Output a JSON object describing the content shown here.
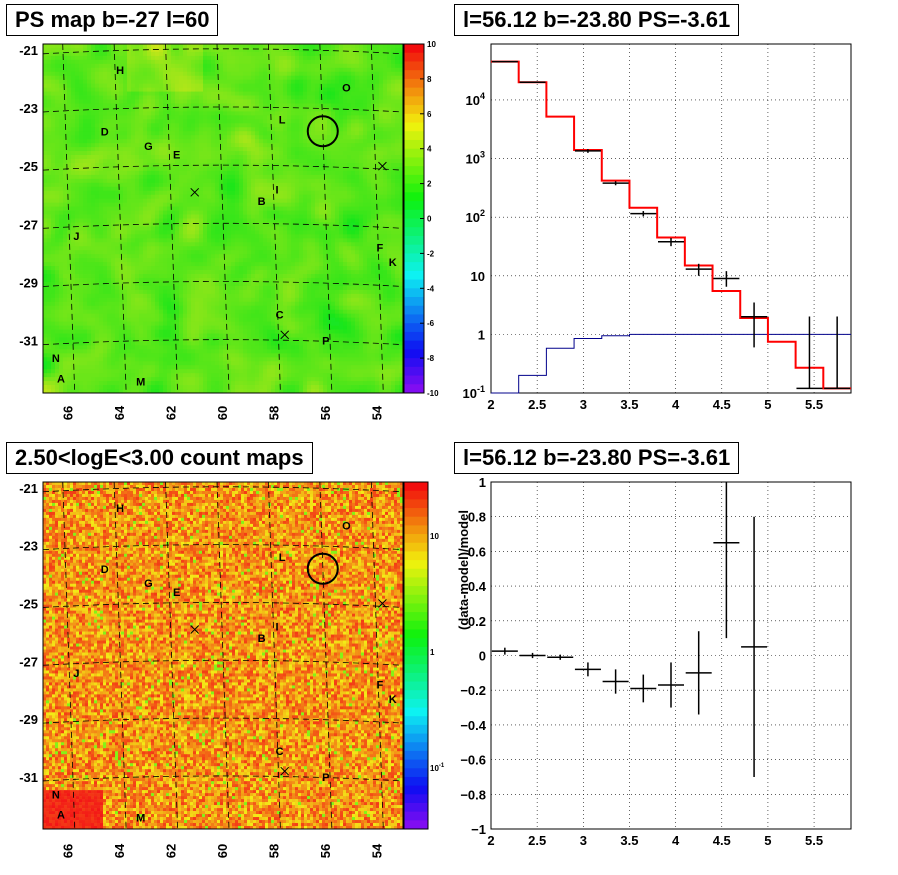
{
  "panels": {
    "tl_title": "PS map b=-27 l=60",
    "tr_title": "l=56.12 b=-23.80 PS=-3.61",
    "bl_title": "2.50<logE<3.00 count maps",
    "br_title": "l=56.12 b=-23.80 PS=-3.61"
  },
  "colors": {
    "red_model": "#ff0000",
    "blue_model": "#00008b",
    "data": "#000000"
  },
  "chart_data": [
    {
      "type": "heatmap",
      "title": "PS map b=-27 l=60",
      "x_ticks": [
        "66",
        "64",
        "62",
        "60",
        "58",
        "56",
        "54"
      ],
      "y_ticks": [
        "-21",
        "-23",
        "-25",
        "-27",
        "-29",
        "-31"
      ],
      "xlim": [
        67,
        53
      ],
      "ylim": [
        -32.8,
        -20.8
      ],
      "colorbar": {
        "min": -10,
        "max": 10,
        "ticks": [
          "10",
          "8",
          "6",
          "4",
          "2",
          "0",
          "-2",
          "-4",
          "-6",
          "-8",
          "-10"
        ]
      },
      "sources": [
        {
          "label": "H",
          "l": 64.0,
          "b": -21.7
        },
        {
          "label": "O",
          "l": 55.2,
          "b": -22.3
        },
        {
          "label": "L",
          "l": 57.7,
          "b": -23.4
        },
        {
          "label": "D",
          "l": 64.6,
          "b": -23.8
        },
        {
          "label": "G",
          "l": 62.9,
          "b": -24.3
        },
        {
          "label": "E",
          "l": 61.8,
          "b": -24.6
        },
        {
          "label": "I",
          "l": 57.9,
          "b": -25.8
        },
        {
          "label": "B",
          "l": 58.5,
          "b": -26.2
        },
        {
          "label": "J",
          "l": 65.7,
          "b": -27.4
        },
        {
          "label": "F",
          "l": 53.9,
          "b": -27.8
        },
        {
          "label": "K",
          "l": 53.4,
          "b": -28.3
        },
        {
          "label": "C",
          "l": 57.8,
          "b": -30.1
        },
        {
          "label": "P",
          "l": 56.0,
          "b": -31.0
        },
        {
          "label": "N",
          "l": 66.5,
          "b": -31.6
        },
        {
          "label": "A",
          "l": 66.3,
          "b": -32.3
        },
        {
          "label": "M",
          "l": 63.2,
          "b": -32.4
        }
      ],
      "cross_marks": [
        {
          "l": 61.1,
          "b": -25.9
        },
        {
          "l": 57.6,
          "b": -30.8
        },
        {
          "l": 53.8,
          "b": -25.0
        }
      ],
      "circle": {
        "l": 56.12,
        "b": -23.8
      }
    },
    {
      "type": "line",
      "title": "l=56.12 b=-23.80 PS=-3.61",
      "xlim": [
        2,
        5.9
      ],
      "ylim": [
        0.1,
        90000
      ],
      "yscale": "log",
      "grid": true,
      "x_ticks": [
        "2",
        "2.5",
        "3",
        "3.5",
        "4",
        "4.5",
        "5",
        "5.5"
      ],
      "y_ticks": [
        "10^-1",
        "1",
        "10",
        "10^2",
        "10^3",
        "10^4"
      ],
      "bin_edges": [
        2.0,
        2.3,
        2.6,
        2.9,
        3.2,
        3.5,
        3.8,
        4.1,
        4.4,
        4.7,
        5.0,
        5.3,
        5.6,
        5.9
      ],
      "series": [
        {
          "values": [
            45000,
            20000,
            5200,
            1400,
            420,
            145,
            45,
            15,
            5.5,
            1.9,
            0.75,
            0.27,
            0.12
          ]
        },
        {
          "values": [
            0.1,
            0.2,
            0.58,
            0.85,
            0.95,
            1.0,
            1.0,
            1.0,
            1.0,
            1.0,
            1.0,
            1.0,
            1.0
          ]
        },
        {
          "x": [
            2.15,
            2.45,
            3.05,
            3.35,
            3.65,
            3.95,
            4.25,
            4.55,
            4.85,
            5.45,
            5.75
          ],
          "values": [
            45000,
            20000,
            1350,
            380,
            115,
            38,
            13,
            9,
            2,
            0.12,
            0.12
          ],
          "err_low": [
            0,
            0,
            100,
            30,
            12,
            6,
            3,
            2.5,
            1.4,
            0,
            0
          ],
          "err_high": [
            0,
            0,
            100,
            30,
            12,
            6,
            3,
            3,
            1.5,
            1.9,
            1.9
          ]
        }
      ]
    },
    {
      "type": "heatmap",
      "title": "2.50<logE<3.00 count maps",
      "x_ticks": [
        "66",
        "64",
        "62",
        "60",
        "58",
        "56",
        "54"
      ],
      "y_ticks": [
        "-21",
        "-23",
        "-25",
        "-27",
        "-29",
        "-31"
      ],
      "colorbar": {
        "scale": "log",
        "ticks": [
          "10",
          "1",
          "10^-1"
        ]
      }
    },
    {
      "type": "scatter",
      "title": "l=56.12 b=-23.80 PS=-3.61",
      "ylabel": "(data-model)/model",
      "xlim": [
        2,
        5.9
      ],
      "ylim": [
        -1,
        1
      ],
      "grid": true,
      "x_ticks": [
        "2",
        "2.5",
        "3",
        "3.5",
        "4",
        "4.5",
        "5",
        "5.5"
      ],
      "y_ticks": [
        "1",
        "0.8",
        "0.6",
        "0.4",
        "0.2",
        "0",
        "-0.2",
        "-0.4",
        "-0.6",
        "-0.8",
        "-1"
      ],
      "points": [
        {
          "x": 2.15,
          "y": 0.025,
          "err": 0.02
        },
        {
          "x": 2.45,
          "y": 0.0,
          "err": 0.015
        },
        {
          "x": 2.75,
          "y": -0.01,
          "err": 0.015
        },
        {
          "x": 3.05,
          "y": -0.08,
          "err": 0.04
        },
        {
          "x": 3.35,
          "y": -0.15,
          "err": 0.07
        },
        {
          "x": 3.65,
          "y": -0.19,
          "err": 0.08
        },
        {
          "x": 3.95,
          "y": -0.17,
          "err": 0.13
        },
        {
          "x": 4.25,
          "y": -0.1,
          "err": 0.24
        },
        {
          "x": 4.55,
          "y": 0.65,
          "err": 0.55
        },
        {
          "x": 4.85,
          "y": 0.05,
          "err": 0.75
        }
      ]
    }
  ]
}
